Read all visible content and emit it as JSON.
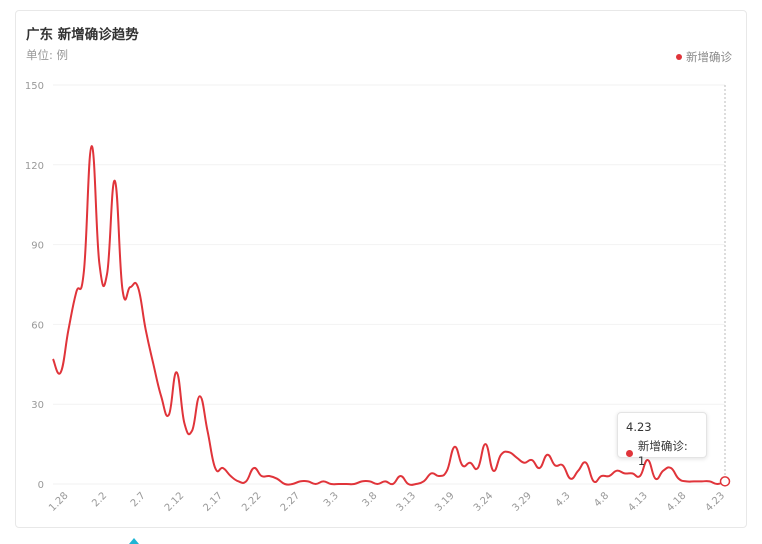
{
  "colors": {
    "series": "#e0343a",
    "grid": "#f2f2f2",
    "axis_text": "#999999"
  },
  "chart_data": {
    "type": "line",
    "title": "广东 新增确诊趋势",
    "subtitle": "单位: 例",
    "legend": {
      "entries": [
        "新增确诊"
      ],
      "placement": "top-right"
    },
    "smooth": true,
    "grid": true,
    "ylim": [
      0,
      150
    ],
    "yticks": [
      0,
      30,
      60,
      90,
      120,
      150
    ],
    "x": [
      "1.26",
      "1.27",
      "1.28",
      "1.29",
      "1.30",
      "1.31",
      "2.1",
      "2.2",
      "2.3",
      "2.4",
      "2.5",
      "2.6",
      "2.7",
      "2.8",
      "2.9",
      "2.10",
      "2.11",
      "2.12",
      "2.13",
      "2.14",
      "2.15",
      "2.16",
      "2.17",
      "2.18",
      "2.19",
      "2.20",
      "2.21",
      "2.22",
      "2.23",
      "2.24",
      "2.25",
      "2.26",
      "2.27",
      "2.28",
      "2.29",
      "3.1",
      "3.2",
      "3.3",
      "3.4",
      "3.5",
      "3.6",
      "3.7",
      "3.8",
      "3.9",
      "3.10",
      "3.11",
      "3.12",
      "3.13",
      "3.15",
      "3.16",
      "3.17",
      "3.18",
      "3.19",
      "3.20",
      "3.21",
      "3.22",
      "3.23",
      "3.24",
      "3.25",
      "3.26",
      "3.27",
      "3.28",
      "3.29",
      "3.30",
      "3.31",
      "4.1",
      "4.2",
      "4.3",
      "4.4",
      "4.5",
      "4.6",
      "4.7",
      "4.8",
      "4.9",
      "4.10",
      "4.11",
      "4.12",
      "4.13",
      "4.14",
      "4.15",
      "4.16",
      "4.17",
      "4.18",
      "4.19",
      "4.20",
      "4.21",
      "4.22",
      "4.23"
    ],
    "xtick_labels": [
      "1.28",
      "2.2",
      "2.7",
      "2.12",
      "2.17",
      "2.22",
      "2.27",
      "3.3",
      "3.8",
      "3.13",
      "3.19",
      "3.24",
      "3.29",
      "4.3",
      "4.8",
      "4.13",
      "4.18",
      "4.23"
    ],
    "series": [
      {
        "name": "新增确诊",
        "values": [
          47,
          42,
          58,
          72,
          80,
          127,
          83,
          79,
          114,
          73,
          74,
          74,
          58,
          45,
          33,
          26,
          42,
          23,
          20,
          33,
          20,
          6,
          6,
          3,
          1,
          1,
          6,
          3,
          3,
          2,
          0,
          0,
          1,
          1,
          0,
          1,
          0,
          0,
          0,
          0,
          1,
          1,
          0,
          1,
          0,
          3,
          0,
          0,
          1,
          4,
          3,
          5,
          14,
          7,
          8,
          6,
          15,
          5,
          11,
          12,
          10,
          8,
          9,
          6,
          11,
          7,
          7,
          2,
          5,
          8,
          1,
          3,
          3,
          5,
          4,
          4,
          3,
          9,
          2,
          5,
          6,
          2,
          1,
          1,
          1,
          1,
          0,
          1
        ]
      }
    ],
    "tooltip": {
      "date": "4.23",
      "label": "新增确诊: 1"
    }
  }
}
